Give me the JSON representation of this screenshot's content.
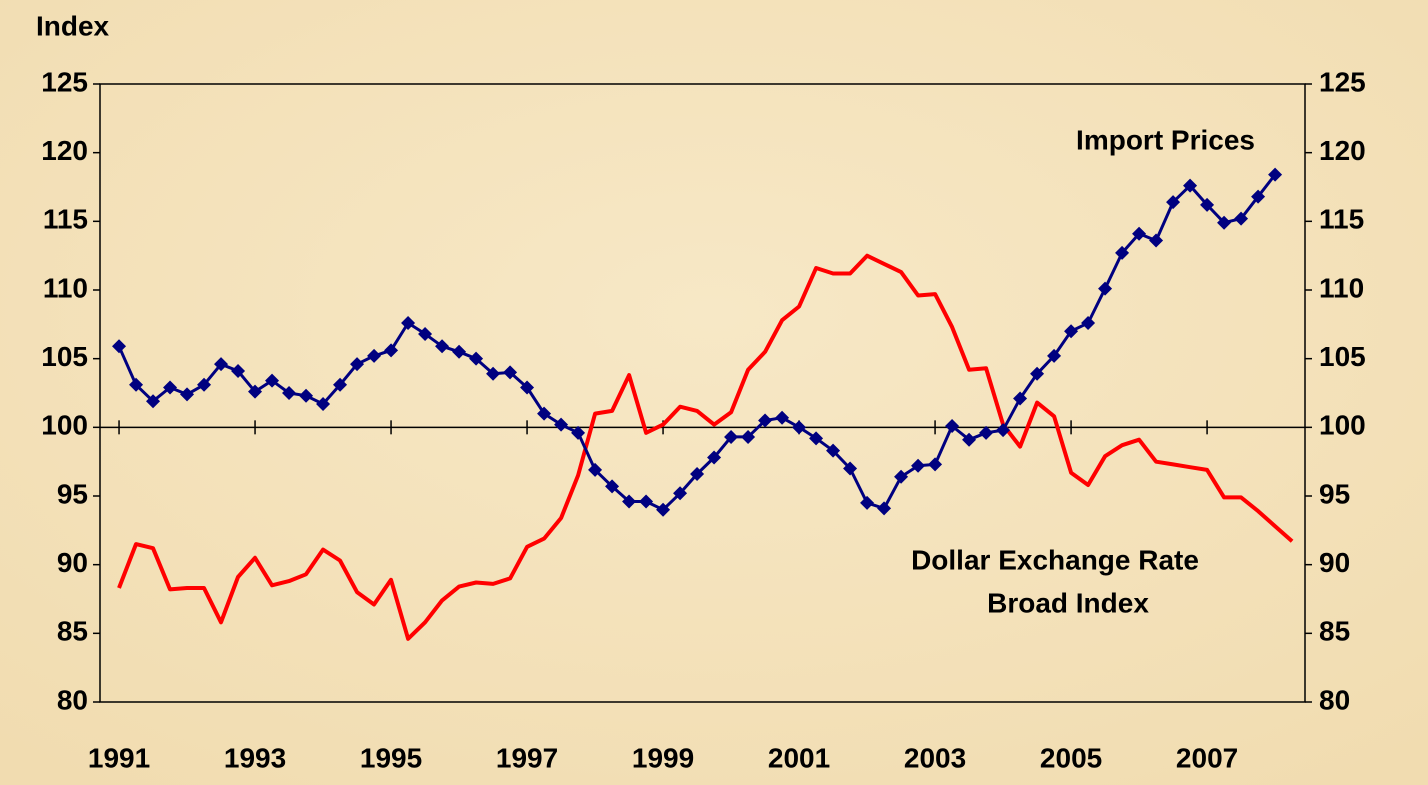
{
  "chart_data": {
    "type": "line",
    "y_axis_label": "Index",
    "annotations": [
      "Import Prices",
      "Dollar Exchange Rate",
      "Broad Index"
    ],
    "x": [
      1991,
      1991.25,
      1991.5,
      1991.75,
      1992,
      1992.25,
      1992.5,
      1992.75,
      1993,
      1993.25,
      1993.5,
      1993.75,
      1994,
      1994.25,
      1994.5,
      1994.75,
      1995,
      1995.25,
      1995.5,
      1995.75,
      1996,
      1996.25,
      1996.5,
      1996.75,
      1997,
      1997.25,
      1997.5,
      1997.75,
      1998,
      1998.25,
      1998.5,
      1998.75,
      1999,
      1999.25,
      1999.5,
      1999.75,
      2000,
      2000.25,
      2000.5,
      2000.75,
      2001,
      2001.25,
      2001.5,
      2001.75,
      2002,
      2002.25,
      2002.5,
      2002.75,
      2003,
      2003.25,
      2003.5,
      2003.75,
      2004,
      2004.25,
      2004.5,
      2004.75,
      2005,
      2005.25,
      2005.5,
      2005.75,
      2006,
      2006.25,
      2006.5,
      2006.75,
      2007,
      2007.25,
      2007.5,
      2007.75,
      2008,
      2008.25
    ],
    "series": [
      {
        "name": "Dollar Exchange Rate Broad Index",
        "color": "#ff0000",
        "marker": "none",
        "values": [
          88.3,
          91.5,
          91.2,
          88.2,
          88.3,
          88.3,
          85.8,
          89.1,
          90.5,
          88.5,
          88.8,
          89.3,
          91.1,
          90.3,
          88.0,
          87.1,
          88.9,
          84.6,
          85.8,
          87.4,
          88.4,
          88.7,
          88.6,
          89.0,
          91.3,
          91.9,
          93.4,
          96.5,
          101.0,
          101.2,
          103.8,
          99.6,
          100.2,
          101.5,
          101.2,
          100.2,
          101.1,
          104.2,
          105.5,
          107.8,
          108.8,
          111.6,
          111.2,
          111.2,
          112.5,
          111.9,
          111.3,
          109.6,
          109.7,
          107.3,
          104.2,
          104.3,
          100.2,
          98.6,
          101.8,
          100.8,
          96.7,
          95.8,
          97.9,
          98.7,
          99.1,
          97.5,
          97.3,
          97.1,
          96.9,
          94.9,
          94.9,
          93.9,
          92.8,
          91.7
        ]
      },
      {
        "name": "Import Prices",
        "color": "#000080",
        "marker": "diamond",
        "values": [
          105.9,
          103.1,
          101.9,
          102.9,
          102.4,
          103.1,
          104.6,
          104.1,
          102.6,
          103.4,
          102.5,
          102.3,
          101.7,
          103.1,
          104.6,
          105.2,
          105.6,
          107.6,
          106.8,
          105.9,
          105.5,
          105.0,
          103.9,
          104.0,
          102.9,
          101.0,
          100.2,
          99.6,
          96.9,
          95.7,
          94.6,
          94.6,
          94.0,
          95.2,
          96.6,
          97.8,
          99.3,
          99.3,
          100.5,
          100.7,
          100.0,
          99.2,
          98.3,
          97.0,
          94.5,
          94.1,
          96.4,
          97.2,
          97.3,
          100.1,
          99.1,
          99.6,
          99.8,
          102.1,
          103.9,
          105.2,
          107.0,
          107.6,
          110.1,
          112.7,
          114.1,
          113.6,
          116.4,
          117.6,
          116.2,
          114.9,
          115.2,
          116.8,
          118.4,
          null
        ]
      }
    ],
    "xlim": [
      1990.72,
      2008.44
    ],
    "xticks": [
      1991,
      1993,
      1995,
      1997,
      1999,
      2001,
      2003,
      2005,
      2007
    ],
    "ylim": [
      80,
      125
    ],
    "yticks": [
      80,
      85,
      90,
      95,
      100,
      105,
      110,
      115,
      120,
      125
    ],
    "y2lim": [
      80,
      125
    ],
    "y2ticks": [
      80,
      85,
      90,
      95,
      100,
      105,
      110,
      115,
      120,
      125
    ],
    "x_axis_at": 100
  }
}
